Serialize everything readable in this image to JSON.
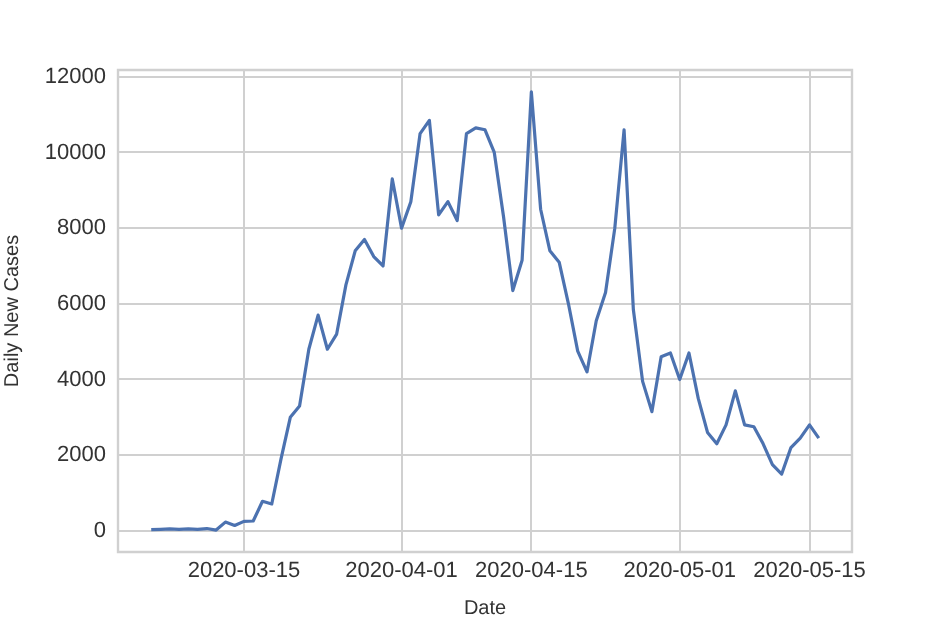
{
  "chart_data": {
    "type": "line",
    "xlabel": "Date",
    "ylabel": "Daily New Cases",
    "x": [
      "2020-03-05",
      "2020-03-06",
      "2020-03-07",
      "2020-03-08",
      "2020-03-09",
      "2020-03-10",
      "2020-03-11",
      "2020-03-12",
      "2020-03-13",
      "2020-03-14",
      "2020-03-15",
      "2020-03-16",
      "2020-03-17",
      "2020-03-18",
      "2020-03-19",
      "2020-03-20",
      "2020-03-21",
      "2020-03-22",
      "2020-03-23",
      "2020-03-24",
      "2020-03-25",
      "2020-03-26",
      "2020-03-27",
      "2020-03-28",
      "2020-03-29",
      "2020-03-30",
      "2020-03-31",
      "2020-04-01",
      "2020-04-02",
      "2020-04-03",
      "2020-04-04",
      "2020-04-05",
      "2020-04-06",
      "2020-04-07",
      "2020-04-08",
      "2020-04-09",
      "2020-04-10",
      "2020-04-11",
      "2020-04-12",
      "2020-04-13",
      "2020-04-14",
      "2020-04-15",
      "2020-04-16",
      "2020-04-17",
      "2020-04-18",
      "2020-04-19",
      "2020-04-20",
      "2020-04-21",
      "2020-04-22",
      "2020-04-23",
      "2020-04-24",
      "2020-04-25",
      "2020-04-26",
      "2020-04-27",
      "2020-04-28",
      "2020-04-29",
      "2020-04-30",
      "2020-05-01",
      "2020-05-02",
      "2020-05-03",
      "2020-05-04",
      "2020-05-05",
      "2020-05-06",
      "2020-05-07",
      "2020-05-08",
      "2020-05-09",
      "2020-05-10",
      "2020-05-11",
      "2020-05-12",
      "2020-05-13",
      "2020-05-14",
      "2020-05-15",
      "2020-05-16"
    ],
    "series": [
      {
        "color": "#4c72b0",
        "values": [
          30,
          40,
          50,
          40,
          50,
          40,
          60,
          20,
          230,
          140,
          250,
          260,
          780,
          710,
          1900,
          3000,
          3300,
          4800,
          5700,
          4800,
          5200,
          6500,
          7400,
          7700,
          7250,
          7000,
          9300,
          8000,
          8700,
          10500,
          10850,
          8350,
          8700,
          8200,
          10500,
          10650,
          10600,
          10000,
          8300,
          6350,
          7150,
          11600,
          8500,
          7400,
          7100,
          6000,
          4750,
          4200,
          5550,
          6300,
          8000,
          10600,
          5850,
          3950,
          3150,
          4600,
          4700,
          4000,
          4700,
          3500,
          2600,
          2300,
          2800,
          3700,
          2800,
          2750,
          2300,
          1750,
          1500,
          2200,
          2450,
          2800,
          2450
        ]
      }
    ],
    "xlim": [
      "2020-03-01T10:00",
      "2020-05-19T14:00"
    ],
    "xticks": [
      {
        "value": "2020-03-15",
        "label": "2020-03-15"
      },
      {
        "value": "2020-04-01",
        "label": "2020-04-01"
      },
      {
        "value": "2020-04-15",
        "label": "2020-04-15"
      },
      {
        "value": "2020-05-01",
        "label": "2020-05-01"
      },
      {
        "value": "2020-05-15",
        "label": "2020-05-15"
      }
    ],
    "ylim": [
      -560,
      12180
    ],
    "yticks": [
      0,
      2000,
      4000,
      6000,
      8000,
      10000,
      12000
    ],
    "grid": true,
    "legend": false,
    "marker": "none",
    "line_style": "solid"
  }
}
